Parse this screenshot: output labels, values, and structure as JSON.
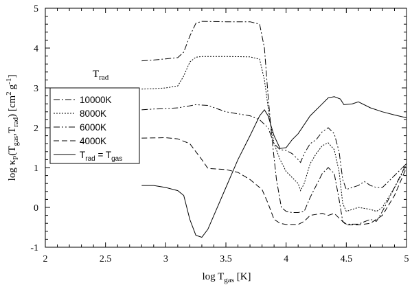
{
  "chart_data": {
    "type": "line",
    "title": "",
    "xlabel": {
      "prefix": "log T",
      "sub": "gas",
      "suffix": " [K]"
    },
    "ylabel": {
      "p1": "log κ",
      "s1": "P",
      "p2": "(T",
      "s2": "gas",
      "p3": ",T",
      "s3": "rad",
      "p4": ") [cm",
      "sup1": "2",
      "p5": "g",
      "sup2": "-1",
      "p6": "]"
    },
    "xlim": [
      2,
      5
    ],
    "ylim": [
      -1,
      5
    ],
    "xticks": [
      2,
      2.5,
      3,
      3.5,
      4,
      4.5,
      5
    ],
    "xtick_labels": [
      "2",
      "2.5",
      "3",
      "3.5",
      "4",
      "4.5",
      "5"
    ],
    "yticks": [
      -1,
      0,
      1,
      2,
      3,
      4,
      5
    ],
    "ytick_labels": [
      "-1",
      "0",
      "1",
      "2",
      "3",
      "4",
      "5"
    ],
    "grid": false,
    "legend": {
      "title": {
        "main": "T",
        "sub": "rad"
      },
      "placement": "center-left",
      "entries": [
        {
          "text": "10000K",
          "dash": "dashdot"
        },
        {
          "text": "8000K",
          "dash": "dotted"
        },
        {
          "text": "6000K",
          "dash": "dashdotdot"
        },
        {
          "text": "4000K",
          "dash": "dashed"
        },
        {
          "main": "T",
          "sub": "rad",
          "mid": " = T",
          "sub2": "gas",
          "dash": "solid"
        }
      ]
    },
    "series": [
      {
        "name": "10000K",
        "dash": "dashdot",
        "points": [
          [
            2.8,
            3.68
          ],
          [
            2.9,
            3.7
          ],
          [
            3.0,
            3.73
          ],
          [
            3.1,
            3.76
          ],
          [
            3.15,
            3.9
          ],
          [
            3.2,
            4.3
          ],
          [
            3.25,
            4.62
          ],
          [
            3.3,
            4.67
          ],
          [
            3.5,
            4.66
          ],
          [
            3.7,
            4.66
          ],
          [
            3.78,
            4.6
          ],
          [
            3.82,
            4.0
          ],
          [
            3.85,
            2.8
          ],
          [
            3.88,
            1.8
          ],
          [
            3.92,
            0.7
          ],
          [
            3.96,
            0.0
          ],
          [
            4.0,
            -0.1
          ],
          [
            4.05,
            -0.13
          ],
          [
            4.1,
            -0.13
          ],
          [
            4.15,
            -0.1
          ],
          [
            4.2,
            0.25
          ],
          [
            4.25,
            0.55
          ],
          [
            4.3,
            0.85
          ],
          [
            4.35,
            1.0
          ],
          [
            4.4,
            0.85
          ],
          [
            4.44,
            0.2
          ],
          [
            4.47,
            -0.35
          ],
          [
            4.5,
            -0.42
          ],
          [
            4.6,
            -0.42
          ],
          [
            4.7,
            -0.3
          ],
          [
            4.75,
            -0.35
          ],
          [
            4.8,
            -0.1
          ],
          [
            4.9,
            0.5
          ],
          [
            5.0,
            1.1
          ]
        ]
      },
      {
        "name": "8000K",
        "dash": "dotted",
        "points": [
          [
            2.8,
            2.97
          ],
          [
            2.9,
            2.98
          ],
          [
            3.0,
            3.0
          ],
          [
            3.1,
            3.05
          ],
          [
            3.15,
            3.3
          ],
          [
            3.2,
            3.65
          ],
          [
            3.25,
            3.77
          ],
          [
            3.3,
            3.79
          ],
          [
            3.5,
            3.79
          ],
          [
            3.7,
            3.78
          ],
          [
            3.78,
            3.72
          ],
          [
            3.82,
            3.2
          ],
          [
            3.86,
            2.3
          ],
          [
            3.9,
            1.6
          ],
          [
            3.95,
            1.2
          ],
          [
            4.0,
            0.9
          ],
          [
            4.05,
            0.75
          ],
          [
            4.1,
            0.6
          ],
          [
            4.12,
            0.42
          ],
          [
            4.15,
            0.6
          ],
          [
            4.2,
            1.1
          ],
          [
            4.25,
            1.35
          ],
          [
            4.3,
            1.55
          ],
          [
            4.35,
            1.62
          ],
          [
            4.4,
            1.45
          ],
          [
            4.44,
            0.9
          ],
          [
            4.47,
            0.1
          ],
          [
            4.5,
            -0.1
          ],
          [
            4.6,
            0.0
          ],
          [
            4.7,
            -0.05
          ],
          [
            4.75,
            -0.1
          ],
          [
            4.8,
            0.0
          ],
          [
            4.9,
            0.5
          ],
          [
            5.0,
            1.05
          ]
        ]
      },
      {
        "name": "6000K",
        "dash": "dashdotdot",
        "points": [
          [
            2.8,
            2.45
          ],
          [
            2.9,
            2.47
          ],
          [
            3.0,
            2.48
          ],
          [
            3.1,
            2.5
          ],
          [
            3.2,
            2.55
          ],
          [
            3.25,
            2.58
          ],
          [
            3.35,
            2.56
          ],
          [
            3.5,
            2.4
          ],
          [
            3.6,
            2.35
          ],
          [
            3.7,
            2.3
          ],
          [
            3.78,
            2.2
          ],
          [
            3.85,
            2.0
          ],
          [
            3.9,
            1.6
          ],
          [
            3.95,
            1.45
          ],
          [
            4.0,
            1.43
          ],
          [
            4.05,
            1.35
          ],
          [
            4.1,
            1.2
          ],
          [
            4.12,
            1.13
          ],
          [
            4.15,
            1.35
          ],
          [
            4.2,
            1.6
          ],
          [
            4.25,
            1.7
          ],
          [
            4.3,
            1.9
          ],
          [
            4.35,
            2.0
          ],
          [
            4.4,
            1.85
          ],
          [
            4.44,
            1.4
          ],
          [
            4.47,
            0.7
          ],
          [
            4.5,
            0.45
          ],
          [
            4.6,
            0.55
          ],
          [
            4.65,
            0.65
          ],
          [
            4.7,
            0.55
          ],
          [
            4.75,
            0.5
          ],
          [
            4.8,
            0.5
          ],
          [
            4.9,
            0.8
          ],
          [
            5.0,
            1.1
          ]
        ]
      },
      {
        "name": "4000K",
        "dash": "dashed",
        "points": [
          [
            2.8,
            1.74
          ],
          [
            3.0,
            1.75
          ],
          [
            3.1,
            1.72
          ],
          [
            3.2,
            1.6
          ],
          [
            3.3,
            1.2
          ],
          [
            3.35,
            0.98
          ],
          [
            3.5,
            0.95
          ],
          [
            3.6,
            0.88
          ],
          [
            3.7,
            0.7
          ],
          [
            3.8,
            0.45
          ],
          [
            3.85,
            0.1
          ],
          [
            3.9,
            -0.3
          ],
          [
            3.95,
            -0.4
          ],
          [
            4.0,
            -0.43
          ],
          [
            4.1,
            -0.43
          ],
          [
            4.15,
            -0.35
          ],
          [
            4.2,
            -0.2
          ],
          [
            4.3,
            -0.15
          ],
          [
            4.35,
            -0.2
          ],
          [
            4.4,
            -0.15
          ],
          [
            4.45,
            -0.3
          ],
          [
            4.5,
            -0.44
          ],
          [
            4.6,
            -0.44
          ],
          [
            4.7,
            -0.4
          ],
          [
            4.8,
            -0.2
          ],
          [
            4.9,
            0.3
          ],
          [
            5.0,
            1.0
          ]
        ]
      },
      {
        "name": "Trad = Tgas",
        "dash": "solid",
        "points": [
          [
            2.8,
            0.55
          ],
          [
            2.9,
            0.55
          ],
          [
            3.0,
            0.5
          ],
          [
            3.1,
            0.42
          ],
          [
            3.15,
            0.3
          ],
          [
            3.2,
            -0.3
          ],
          [
            3.25,
            -0.7
          ],
          [
            3.3,
            -0.75
          ],
          [
            3.35,
            -0.55
          ],
          [
            3.4,
            -0.2
          ],
          [
            3.5,
            0.5
          ],
          [
            3.6,
            1.2
          ],
          [
            3.7,
            1.8
          ],
          [
            3.78,
            2.3
          ],
          [
            3.82,
            2.45
          ],
          [
            3.85,
            2.3
          ],
          [
            3.9,
            1.8
          ],
          [
            3.95,
            1.48
          ],
          [
            4.0,
            1.5
          ],
          [
            4.05,
            1.7
          ],
          [
            4.1,
            1.85
          ],
          [
            4.2,
            2.3
          ],
          [
            4.3,
            2.6
          ],
          [
            4.35,
            2.75
          ],
          [
            4.4,
            2.78
          ],
          [
            4.45,
            2.72
          ],
          [
            4.48,
            2.58
          ],
          [
            4.55,
            2.6
          ],
          [
            4.6,
            2.65
          ],
          [
            4.7,
            2.5
          ],
          [
            4.8,
            2.4
          ],
          [
            4.9,
            2.32
          ],
          [
            5.0,
            2.25
          ]
        ]
      }
    ]
  }
}
